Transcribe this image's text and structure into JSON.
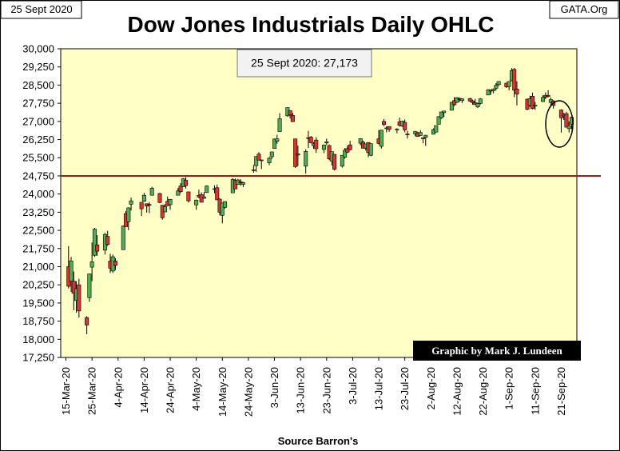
{
  "chart_data": {
    "type": "candlestick",
    "title": "Dow Jones Industrials Daily OHLC",
    "date_label": "25 Sept 2020",
    "source_label": "GATA.Org",
    "annotation": "25 Sept 2020: 27,173",
    "credit": "Graphic by Mark J. Lundeen",
    "x_label": "Source Barron's",
    "up_color": "#4caf50",
    "down_color": "#e03030",
    "plot_color": "#ffffc6",
    "grid": true,
    "reference_line": {
      "value": 24750,
      "color": "#9b1c1c"
    },
    "xlim": [
      "2020-03-13",
      "2020-09-27"
    ],
    "xticks": [
      {
        "value": "2020-03-15",
        "label": "15-Mar-20"
      },
      {
        "value": "2020-03-25",
        "label": "25-Mar-20"
      },
      {
        "value": "2020-04-04",
        "label": "4-Apr-20"
      },
      {
        "value": "2020-04-14",
        "label": "14-Apr-20"
      },
      {
        "value": "2020-04-24",
        "label": "24-Apr-20"
      },
      {
        "value": "2020-05-04",
        "label": "4-May-20"
      },
      {
        "value": "2020-05-14",
        "label": "14-May-20"
      },
      {
        "value": "2020-05-24",
        "label": "24-May-20"
      },
      {
        "value": "2020-06-03",
        "label": "3-Jun-20"
      },
      {
        "value": "2020-06-13",
        "label": "13-Jun-20"
      },
      {
        "value": "2020-06-23",
        "label": "23-Jun-20"
      },
      {
        "value": "2020-07-03",
        "label": "3-Jul-20"
      },
      {
        "value": "2020-07-13",
        "label": "13-Jul-20"
      },
      {
        "value": "2020-07-23",
        "label": "23-Jul-20"
      },
      {
        "value": "2020-08-02",
        "label": "2-Aug-20"
      },
      {
        "value": "2020-08-12",
        "label": "12-Aug-20"
      },
      {
        "value": "2020-08-22",
        "label": "22-Aug-20"
      },
      {
        "value": "2020-09-01",
        "label": "1-Sep-20"
      },
      {
        "value": "2020-09-11",
        "label": "11-Sep-20"
      },
      {
        "value": "2020-09-21",
        "label": "21-Sep-20"
      }
    ],
    "ylim": [
      17250,
      30000
    ],
    "yticks": [
      {
        "value": 17250,
        "label": "17,250"
      },
      {
        "value": 18000,
        "label": "18,000"
      },
      {
        "value": 18750,
        "label": "18,750"
      },
      {
        "value": 19500,
        "label": "19,500"
      },
      {
        "value": 20250,
        "label": "20,250"
      },
      {
        "value": 21000,
        "label": "21,000"
      },
      {
        "value": 21750,
        "label": "21,750"
      },
      {
        "value": 22500,
        "label": "22,500"
      },
      {
        "value": 23250,
        "label": "23,250"
      },
      {
        "value": 24000,
        "label": "24,000"
      },
      {
        "value": 24750,
        "label": "24,750"
      },
      {
        "value": 25500,
        "label": "25,500"
      },
      {
        "value": 26250,
        "label": "26,250"
      },
      {
        "value": 27000,
        "label": "27,000"
      },
      {
        "value": 27750,
        "label": "27,750"
      },
      {
        "value": 28500,
        "label": "28,500"
      },
      {
        "value": 29250,
        "label": "29,250"
      },
      {
        "value": 30000,
        "label": "30,000"
      }
    ],
    "x": [
      "2020-03-16",
      "2020-03-17",
      "2020-03-18",
      "2020-03-19",
      "2020-03-20",
      "2020-03-23",
      "2020-03-24",
      "2020-03-25",
      "2020-03-26",
      "2020-03-27",
      "2020-03-30",
      "2020-03-31",
      "2020-04-01",
      "2020-04-02",
      "2020-04-03",
      "2020-04-06",
      "2020-04-07",
      "2020-04-08",
      "2020-04-09",
      "2020-04-13",
      "2020-04-14",
      "2020-04-15",
      "2020-04-16",
      "2020-04-17",
      "2020-04-20",
      "2020-04-21",
      "2020-04-22",
      "2020-04-23",
      "2020-04-24",
      "2020-04-27",
      "2020-04-28",
      "2020-04-29",
      "2020-04-30",
      "2020-05-01",
      "2020-05-04",
      "2020-05-05",
      "2020-05-06",
      "2020-05-07",
      "2020-05-08",
      "2020-05-11",
      "2020-05-12",
      "2020-05-13",
      "2020-05-14",
      "2020-05-15",
      "2020-05-18",
      "2020-05-19",
      "2020-05-20",
      "2020-05-21",
      "2020-05-22",
      "2020-05-26",
      "2020-05-27",
      "2020-05-28",
      "2020-05-29",
      "2020-06-01",
      "2020-06-02",
      "2020-06-03",
      "2020-06-04",
      "2020-06-05",
      "2020-06-08",
      "2020-06-09",
      "2020-06-10",
      "2020-06-11",
      "2020-06-12",
      "2020-06-15",
      "2020-06-16",
      "2020-06-17",
      "2020-06-18",
      "2020-06-19",
      "2020-06-22",
      "2020-06-23",
      "2020-06-24",
      "2020-06-25",
      "2020-06-26",
      "2020-06-29",
      "2020-06-30",
      "2020-07-01",
      "2020-07-02",
      "2020-07-06",
      "2020-07-07",
      "2020-07-08",
      "2020-07-09",
      "2020-07-10",
      "2020-07-13",
      "2020-07-14",
      "2020-07-15",
      "2020-07-16",
      "2020-07-17",
      "2020-07-20",
      "2020-07-21",
      "2020-07-22",
      "2020-07-23",
      "2020-07-24",
      "2020-07-27",
      "2020-07-28",
      "2020-07-29",
      "2020-07-30",
      "2020-07-31",
      "2020-08-03",
      "2020-08-04",
      "2020-08-05",
      "2020-08-06",
      "2020-08-07",
      "2020-08-10",
      "2020-08-11",
      "2020-08-12",
      "2020-08-13",
      "2020-08-14",
      "2020-08-17",
      "2020-08-18",
      "2020-08-19",
      "2020-08-20",
      "2020-08-21",
      "2020-08-24",
      "2020-08-25",
      "2020-08-26",
      "2020-08-27",
      "2020-08-28",
      "2020-08-31",
      "2020-09-01",
      "2020-09-02",
      "2020-09-03",
      "2020-09-04",
      "2020-09-08",
      "2020-09-09",
      "2020-09-10",
      "2020-09-11",
      "2020-09-14",
      "2020-09-15",
      "2020-09-16",
      "2020-09-17",
      "2020-09-18",
      "2020-09-21",
      "2020-09-22",
      "2020-09-23",
      "2020-09-24",
      "2020-09-25"
    ],
    "open": [
      21000,
      20400,
      20400,
      19600,
      20250,
      18900,
      19720,
      20980,
      21470,
      21900,
      21680,
      22250,
      21230,
      20820,
      21230,
      21700,
      23190,
      22860,
      23580,
      23660,
      23700,
      23600,
      23570,
      23950,
      24020,
      23540,
      23260,
      23700,
      23560,
      23950,
      24330,
      24300,
      24570,
      24090,
      23550,
      23950,
      23980,
      23820,
      24060,
      24210,
      24260,
      23790,
      23120,
      23450,
      24050,
      24570,
      24400,
      24510,
      24400,
      25000,
      25170,
      25650,
      25410,
      25290,
      25540,
      25880,
      26180,
      26580,
      27230,
      27450,
      27250,
      26280,
      25660,
      25150,
      26330,
      26350,
      26000,
      26230,
      25840,
      26110,
      26000,
      25360,
      25640,
      25150,
      25520,
      25880,
      26030,
      26100,
      26140,
      25900,
      26130,
      25600,
      26280,
      25970,
      27000,
      26730,
      26790,
      26650,
      26980,
      26810,
      26960,
      26480,
      26490,
      26530,
      26420,
      26320,
      26340,
      26470,
      26560,
      26880,
      27150,
      27360,
      27460,
      27860,
      27790,
      27950,
      27860,
      27940,
      27850,
      27770,
      27600,
      27740,
      28090,
      28300,
      28270,
      28370,
      28520,
      28580,
      28440,
      28680,
      29150,
      28340,
      27920,
      27660,
      28040,
      27660,
      27820,
      28080,
      28070,
      27780,
      27840,
      27470,
      27230,
      27320,
      26700,
      26880
    ],
    "high": [
      21850,
      21400,
      20800,
      20400,
      20500,
      18950,
      20710,
      22000,
      22600,
      22300,
      22400,
      22480,
      21530,
      21500,
      21350,
      22700,
      23300,
      23450,
      23850,
      23660,
      24050,
      23600,
      23670,
      24300,
      24050,
      23540,
      23580,
      23900,
      23800,
      24250,
      24450,
      24660,
      24700,
      24090,
      23770,
      24180,
      24070,
      24080,
      24360,
      24360,
      24390,
      23820,
      23640,
      23690,
      24650,
      24640,
      24630,
      24610,
      24500,
      25200,
      25550,
      25730,
      25410,
      25530,
      25750,
      26290,
      26450,
      27340,
      27580,
      27450,
      27350,
      26280,
      26000,
      25850,
      26610,
      26400,
      26150,
      26350,
      26050,
      26290,
      26050,
      25750,
      25640,
      25600,
      25900,
      26000,
      26200,
      26300,
      26200,
      26080,
      26130,
      26090,
      26640,
      26650,
      27100,
      26800,
      26790,
      26720,
      27160,
      27030,
      27080,
      26610,
      26610,
      26570,
      26640,
      26340,
      26440,
      26710,
      26830,
      27210,
      27400,
      27440,
      27800,
      28000,
      28000,
      27980,
      27950,
      27980,
      27900,
      27930,
      27770,
      27960,
      28330,
      28310,
      28360,
      28580,
      28660,
      28600,
      28660,
      29200,
      29200,
      28660,
      27940,
      28060,
      28190,
      27810,
      28080,
      28200,
      28290,
      27990,
      27880,
      27500,
      27350,
      27400,
      27000,
      27190
    ],
    "low": [
      20100,
      19950,
      19200,
      19100,
      18900,
      18210,
      19550,
      20400,
      21400,
      21450,
      21500,
      21850,
      20740,
      20740,
      20860,
      21700,
      22650,
      22500,
      23320,
      23090,
      23680,
      23230,
      23210,
      23950,
      23620,
      22940,
      23260,
      23500,
      23350,
      23940,
      24040,
      24290,
      24230,
      23650,
      23350,
      23830,
      23660,
      23810,
      24050,
      24030,
      23760,
      23120,
      22790,
      23400,
      24050,
      24200,
      24390,
      24340,
      24290,
      24880,
      24920,
      25390,
      25030,
      25190,
      25450,
      25880,
      26080,
      26580,
      27190,
      27120,
      26980,
      25080,
      25150,
      24850,
      25900,
      26090,
      25870,
      25700,
      25690,
      26020,
      25400,
      25180,
      24970,
      25090,
      25460,
      25690,
      25800,
      26010,
      25880,
      25800,
      25520,
      25560,
      26050,
      25880,
      26800,
      26550,
      26570,
      26510,
      26780,
      26770,
      26550,
      26290,
      26380,
      26370,
      26410,
      26100,
      25990,
      26460,
      26540,
      26880,
      27100,
      27180,
      27460,
      27630,
      27760,
      27810,
      27760,
      27800,
      27690,
      27690,
      27550,
      27700,
      28090,
      28110,
      28160,
      28280,
      28460,
      28380,
      28290,
      28660,
      28000,
      27660,
      27460,
      27600,
      27500,
      27480,
      27800,
      27920,
      28000,
      27600,
      27530,
      26540,
      27060,
      26760,
      26540,
      26680
    ],
    "close": [
      20190,
      21240,
      19900,
      20090,
      19170,
      18590,
      20700,
      21200,
      22550,
      21640,
      22330,
      21920,
      20940,
      21410,
      21050,
      22680,
      22650,
      23430,
      23720,
      23390,
      23950,
      23500,
      23540,
      24240,
      23650,
      23020,
      23480,
      23520,
      23780,
      24130,
      24100,
      24630,
      24350,
      23720,
      23750,
      23880,
      23660,
      23880,
      24330,
      24220,
      23760,
      23250,
      23630,
      23690,
      24600,
      24210,
      24580,
      24470,
      24470,
      25000,
      25550,
      25400,
      25380,
      25480,
      25740,
      26270,
      26280,
      27110,
      27570,
      27270,
      26990,
      25130,
      25610,
      25760,
      26290,
      26120,
      26080,
      25870,
      26020,
      26160,
      25450,
      25750,
      25020,
      25600,
      25810,
      25730,
      25830,
      26290,
      25890,
      26070,
      25710,
      26080,
      26090,
      26640,
      26870,
      26730,
      26670,
      26680,
      26840,
      27010,
      26650,
      26470,
      26580,
      26380,
      26540,
      26310,
      26430,
      26660,
      26830,
      27200,
      27390,
      27430,
      27790,
      27690,
      27980,
      27900,
      27930,
      27840,
      27780,
      27690,
      27740,
      27930,
      28310,
      28250,
      28330,
      28490,
      28650,
      28430,
      28650,
      29100,
      28290,
      28130,
      27500,
      27940,
      27530,
      27670,
      27990,
      28000,
      28030,
      27900,
      27660,
      27150,
      27290,
      26760,
      26820,
      27170
    ]
  }
}
